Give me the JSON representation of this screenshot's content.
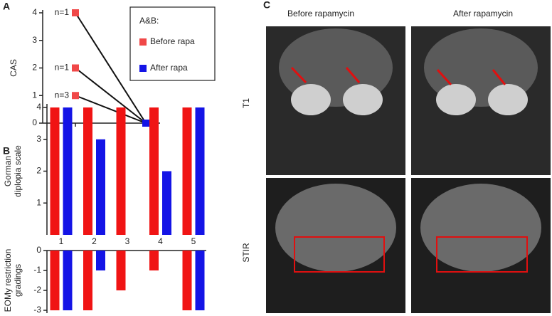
{
  "panel_labels": [
    "A",
    "B",
    "C"
  ],
  "chart_data": [
    {
      "type": "line",
      "ylabel": "CAS",
      "ylim": [
        0,
        4
      ],
      "yticks": [
        0,
        1,
        2,
        3,
        4
      ],
      "categories": [
        null,
        null
      ],
      "series": [
        {
          "values": [
            4,
            0
          ]
        },
        {
          "values": [
            2,
            0
          ]
        },
        {
          "values": [
            1,
            0
          ]
        }
      ],
      "annotations": [
        "n=1",
        "n=1",
        "n=3"
      ],
      "legend": {
        "title": "A&B:",
        "entries": [
          "Before rapa",
          "After rapa"
        ],
        "colors": [
          "#f04848",
          "#1414e6"
        ]
      }
    },
    {
      "type": "bar",
      "ylabel": [
        "Gorman",
        "diplopia scale"
      ],
      "ylim": [
        0,
        4
      ],
      "yticks": [
        1,
        2,
        3,
        4
      ],
      "categories": [
        "1",
        "2",
        "3",
        "4",
        "5"
      ],
      "series": [
        {
          "color": "#f01414",
          "values": [
            4,
            4,
            4,
            4,
            4
          ]
        },
        {
          "color": "#1414e6",
          "values": [
            4,
            3,
            0,
            2,
            4
          ]
        }
      ]
    },
    {
      "type": "bar",
      "ylabel": [
        "EOMy restriction",
        "gradings"
      ],
      "ylim": [
        0,
        -3
      ],
      "yticks": [
        0,
        -1,
        -2,
        -3
      ],
      "categories": [
        null,
        null,
        null,
        null,
        null
      ],
      "series": [
        {
          "color": "#f01414",
          "values": [
            -3,
            -3,
            -2,
            -1,
            -3
          ]
        },
        {
          "color": "#1414e6",
          "values": [
            -3,
            -1,
            0,
            0,
            -3
          ]
        }
      ]
    }
  ],
  "images": {
    "columns": [
      "Before rapamycin",
      "After rapamycin"
    ],
    "rows": [
      "T1",
      "STIR"
    ]
  }
}
